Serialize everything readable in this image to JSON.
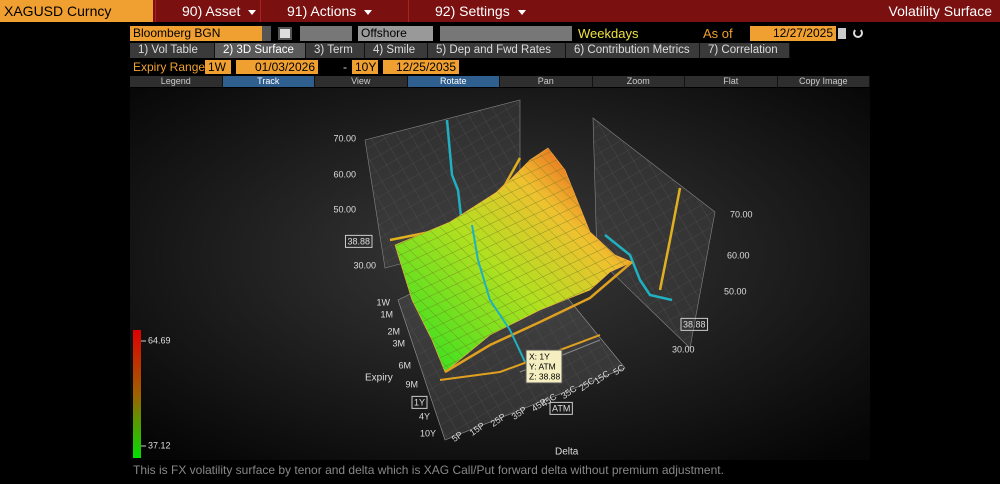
{
  "header": {
    "ticker": "XAGUSD Curncy",
    "menus": [
      "90) Asset",
      "91) Actions",
      "92) Settings"
    ],
    "title": "Volatility Surface"
  },
  "toolbar": {
    "source": "Bloomberg BGN",
    "market": "Offshore",
    "days": "Weekdays",
    "as_of_label": "As of",
    "as_of_date": "12/27/2025"
  },
  "tabs": [
    "1) Vol Table",
    "2) 3D Surface",
    "3) Term",
    "4) Smile",
    "5) Dep and Fwd Rates",
    "6) Contribution Metrics",
    "7) Correlation"
  ],
  "expiry_range": {
    "label": "Expiry Range",
    "from": "1W",
    "from_date": "01/03/2026",
    "separator": "-",
    "to": "10Y",
    "to_date": "12/25/2035"
  },
  "tools": [
    "Legend",
    "Track",
    "View",
    "Rotate",
    "Pan",
    "Zoom",
    "Flat",
    "Copy Image"
  ],
  "surface": {
    "left_z_ticks": [
      "70.00",
      "60.00",
      "50.00",
      "30.00"
    ],
    "left_z_marker": "38.88",
    "right_z_ticks": [
      "70.00",
      "60.00",
      "50.00",
      "30.00"
    ],
    "right_z_marker": "38.88",
    "expiry_title": "Expiry",
    "expiry_ticks": [
      "1W",
      "1M",
      "2M",
      "3M",
      "6M",
      "9M",
      "1Y",
      "4Y",
      "10Y"
    ],
    "delta_title": "Delta",
    "delta_ticks": [
      "5P",
      "15P",
      "25P",
      "35P",
      "45P",
      "ATM",
      "45C",
      "35C",
      "25C",
      "15C",
      "5C"
    ],
    "tooltip": [
      "X: 1Y",
      "Y: ATM",
      "Z: 38.88"
    ],
    "colorbar": {
      "max": "64.69",
      "min": "37.12"
    }
  },
  "footer": "This is FX volatility surface by tenor and delta which is XAG Call/Put forward delta without premium adjustment."
}
